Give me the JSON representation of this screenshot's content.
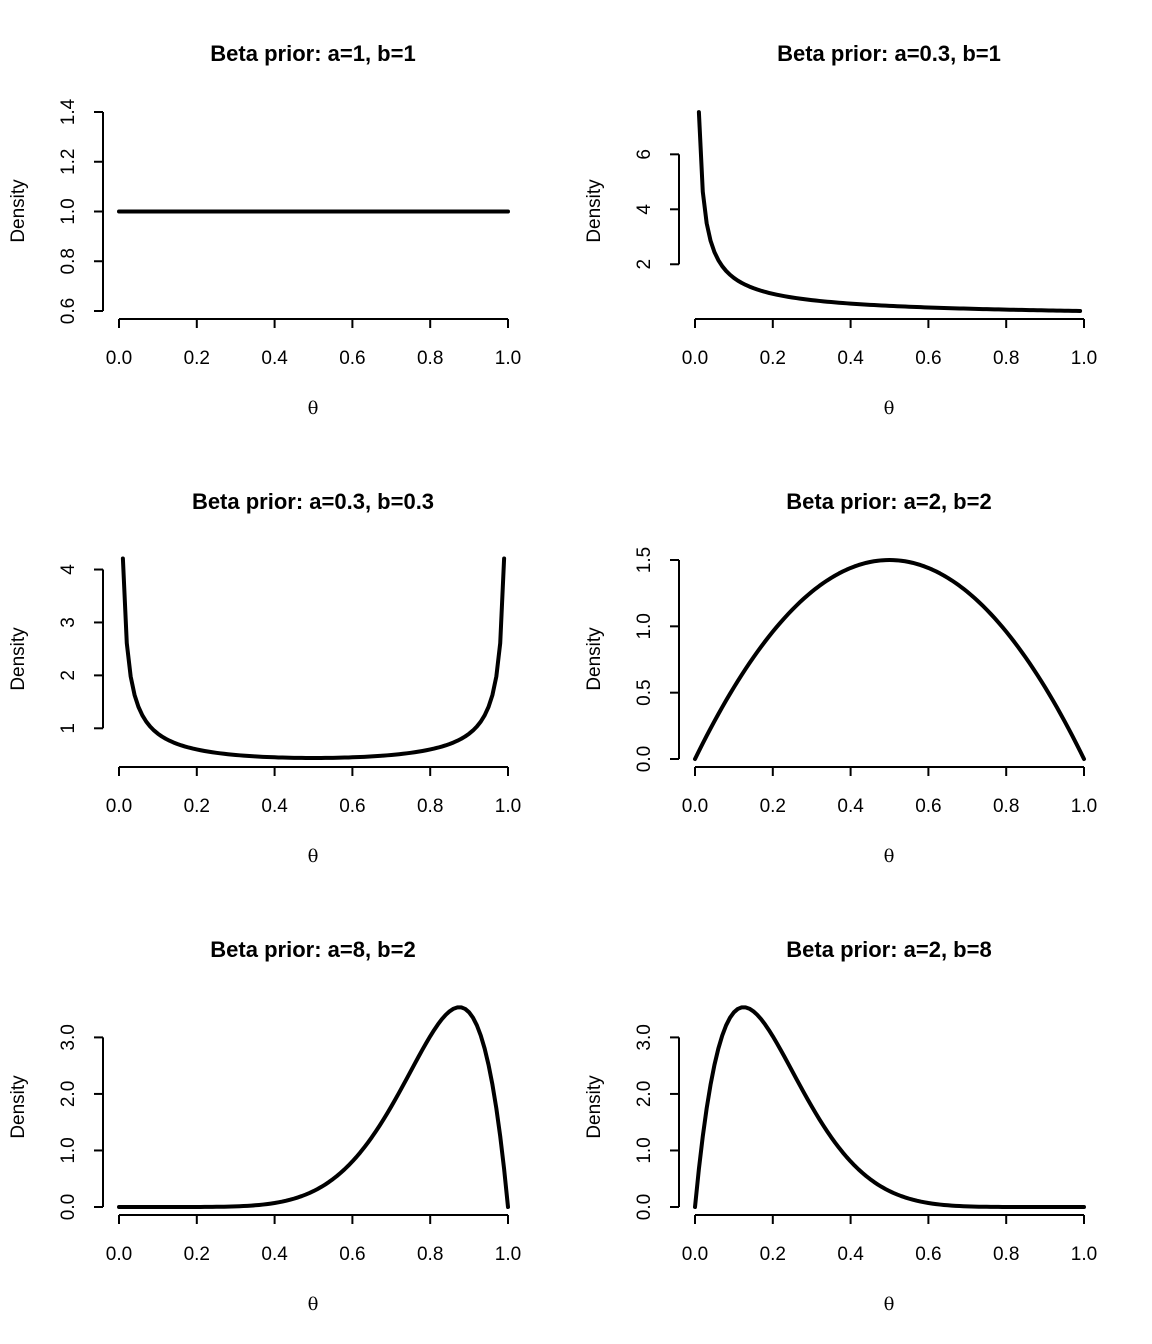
{
  "chart_data": [
    {
      "type": "line",
      "title": "Beta prior: a=1, b=1",
      "a": 1,
      "b": 1,
      "xlabel": "θ",
      "ylabel": "Density",
      "theta": {
        "from": 0,
        "to": 1,
        "by": 0.01
      },
      "xlim": [
        0,
        1
      ],
      "xticks": [
        "0.0",
        "0.2",
        "0.4",
        "0.6",
        "0.8",
        "1.0"
      ],
      "ylim": [
        0.6,
        1.4
      ],
      "yticks": [
        "0.6",
        "0.8",
        "1.0",
        "1.2",
        "1.4"
      ],
      "grid": false
    },
    {
      "type": "line",
      "title": "Beta prior: a=0.3, b=1",
      "a": 0.3,
      "b": 1,
      "xlabel": "θ",
      "ylabel": "Density",
      "theta": {
        "from": 0,
        "to": 1,
        "by": 0.01
      },
      "xlim": [
        0,
        1
      ],
      "xticks": [
        "0.0",
        "0.2",
        "0.4",
        "0.6",
        "0.8",
        "1.0"
      ],
      "ylim": [
        0.3,
        7.54
      ],
      "yticks": [
        "2",
        "4",
        "6"
      ],
      "grid": false
    },
    {
      "type": "line",
      "title": "Beta prior: a=0.3, b=0.3",
      "a": 0.3,
      "b": 0.3,
      "xlabel": "θ",
      "ylabel": "Density",
      "theta": {
        "from": 0,
        "to": 1,
        "by": 0.01
      },
      "xlim": [
        0,
        1
      ],
      "xticks": [
        "0.0",
        "0.2",
        "0.4",
        "0.6",
        "0.8",
        "1.0"
      ],
      "ylim": [
        0.42,
        4.18
      ],
      "yticks": [
        "1",
        "2",
        "3",
        "4"
      ],
      "grid": false
    },
    {
      "type": "line",
      "title": "Beta prior: a=2, b=2",
      "a": 2,
      "b": 2,
      "xlabel": "θ",
      "ylabel": "Density",
      "theta": {
        "from": 0,
        "to": 1,
        "by": 0.01
      },
      "xlim": [
        0,
        1
      ],
      "xticks": [
        "0.0",
        "0.2",
        "0.4",
        "0.6",
        "0.8",
        "1.0"
      ],
      "ylim": [
        0,
        1.5
      ],
      "yticks": [
        "0.0",
        "0.5",
        "1.0",
        "1.5"
      ],
      "grid": false
    },
    {
      "type": "line",
      "title": "Beta prior: a=8, b=2",
      "a": 8,
      "b": 2,
      "xlabel": "θ",
      "ylabel": "Density",
      "theta": {
        "from": 0,
        "to": 1,
        "by": 0.01
      },
      "xlim": [
        0,
        1
      ],
      "xticks": [
        "0.0",
        "0.2",
        "0.4",
        "0.6",
        "0.8",
        "1.0"
      ],
      "ylim": [
        0,
        3.52
      ],
      "yticks": [
        "0.0",
        "1.0",
        "2.0",
        "3.0"
      ],
      "grid": false
    },
    {
      "type": "line",
      "title": "Beta prior: a=2, b=8",
      "a": 2,
      "b": 8,
      "xlabel": "θ",
      "ylabel": "Density",
      "theta": {
        "from": 0,
        "to": 1,
        "by": 0.01
      },
      "xlim": [
        0,
        1
      ],
      "xticks": [
        "0.0",
        "0.2",
        "0.4",
        "0.6",
        "0.8",
        "1.0"
      ],
      "ylim": [
        0,
        3.52
      ],
      "yticks": [
        "0.0",
        "1.0",
        "2.0",
        "3.0"
      ],
      "grid": false
    }
  ]
}
